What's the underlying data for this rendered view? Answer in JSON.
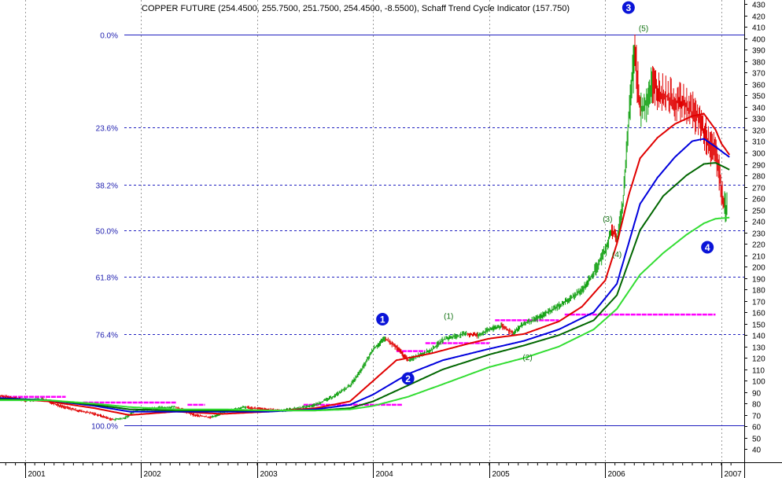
{
  "chart_data": {
    "type": "line",
    "title": "COPPER FUTURE (254.4500, 255.7500, 251.7500, 254.4500, -8.5500), Schaff Trend Cycle Indicator (157.750)",
    "ylim": [
      30,
      435
    ],
    "xlim": [
      2000.75,
      2007.15
    ],
    "y_ticks": [
      40,
      50,
      60,
      70,
      80,
      90,
      100,
      110,
      120,
      130,
      140,
      150,
      160,
      170,
      180,
      190,
      200,
      210,
      220,
      230,
      240,
      250,
      260,
      270,
      280,
      290,
      300,
      310,
      320,
      330,
      340,
      350,
      360,
      370,
      380,
      390,
      400,
      410,
      420,
      430
    ],
    "x_ticks": [
      {
        "label": "2001",
        "value": 2001
      },
      {
        "label": "2002",
        "value": 2002
      },
      {
        "label": "2003",
        "value": 2003
      },
      {
        "label": "2004",
        "value": 2004
      },
      {
        "label": "2005",
        "value": 2005
      },
      {
        "label": "2006",
        "value": 2006
      },
      {
        "label": "2007",
        "value": 2007
      }
    ],
    "fib_levels": [
      {
        "label": "0.0%",
        "value": 403
      },
      {
        "label": "23.6%",
        "value": 322
      },
      {
        "label": "38.2%",
        "value": 272
      },
      {
        "label": "50.0%",
        "value": 232
      },
      {
        "label": "61.8%",
        "value": 191
      },
      {
        "label": "76.4%",
        "value": 141
      },
      {
        "label": "100.0%",
        "value": 61
      }
    ],
    "price": {
      "name": "COPPER FUTURE",
      "x": [
        2000.75,
        2000.9,
        2001.0,
        2001.15,
        2001.3,
        2001.45,
        2001.6,
        2001.75,
        2001.85,
        2001.95,
        2002.1,
        2002.3,
        2002.45,
        2002.6,
        2002.75,
        2002.9,
        2003.05,
        2003.2,
        2003.35,
        2003.5,
        2003.65,
        2003.8,
        2003.9,
        2004.0,
        2004.1,
        2004.2,
        2004.3,
        2004.4,
        2004.5,
        2004.6,
        2004.7,
        2004.8,
        2004.9,
        2005.0,
        2005.1,
        2005.2,
        2005.3,
        2005.4,
        2005.5,
        2005.6,
        2005.7,
        2005.8,
        2005.9,
        2006.0,
        2006.05,
        2006.1,
        2006.15,
        2006.2,
        2006.25,
        2006.3,
        2006.35,
        2006.4,
        2006.5,
        2006.6,
        2006.7,
        2006.8,
        2006.85,
        2006.9,
        2006.95,
        2006.98,
        2007.02,
        2007.05
      ],
      "values": [
        87,
        85,
        83,
        84,
        78,
        74,
        71,
        66,
        67,
        74,
        76,
        77,
        70,
        68,
        74,
        77,
        75,
        74,
        76,
        79,
        86,
        96,
        110,
        128,
        137,
        129,
        118,
        123,
        127,
        136,
        139,
        141,
        140,
        145,
        148,
        142,
        150,
        154,
        160,
        166,
        172,
        180,
        195,
        215,
        232,
        225,
        255,
        330,
        390,
        335,
        345,
        360,
        350,
        345,
        340,
        330,
        318,
        305,
        300,
        280,
        252,
        254
      ]
    },
    "series": [
      {
        "name": "",
        "color": "#e00000",
        "x": [
          2000.75,
          2001.2,
          2001.6,
          2001.9,
          2002.3,
          2002.7,
          2003.1,
          2003.5,
          2003.8,
          2004.0,
          2004.2,
          2004.5,
          2004.8,
          2005.0,
          2005.3,
          2005.6,
          2005.8,
          2006.0,
          2006.1,
          2006.2,
          2006.3,
          2006.45,
          2006.6,
          2006.75,
          2006.85,
          2006.95,
          2007.0,
          2007.07
        ],
        "values": [
          85,
          82,
          76,
          70,
          73,
          71,
          73,
          76,
          82,
          100,
          118,
          124,
          132,
          137,
          141,
          152,
          165,
          188,
          220,
          262,
          295,
          313,
          325,
          332,
          334,
          320,
          308,
          298
        ]
      },
      {
        "name": "",
        "color": "#0000dd",
        "x": [
          2000.75,
          2001.2,
          2001.6,
          2001.9,
          2002.3,
          2002.7,
          2003.1,
          2003.5,
          2003.8,
          2004.0,
          2004.3,
          2004.6,
          2005.0,
          2005.3,
          2005.6,
          2005.9,
          2006.1,
          2006.2,
          2006.3,
          2006.45,
          2006.6,
          2006.75,
          2006.85,
          2006.95,
          2007.07
        ],
        "values": [
          85,
          83,
          78,
          73,
          73,
          73,
          73,
          75,
          79,
          88,
          106,
          118,
          128,
          135,
          145,
          160,
          185,
          220,
          255,
          278,
          296,
          310,
          312,
          305,
          296
        ]
      },
      {
        "name": "",
        "color": "#006600",
        "x": [
          2000.75,
          2001.2,
          2001.6,
          2001.9,
          2002.3,
          2002.7,
          2003.1,
          2003.5,
          2003.8,
          2004.0,
          2004.3,
          2004.6,
          2005.0,
          2005.3,
          2005.6,
          2005.9,
          2006.1,
          2006.3,
          2006.5,
          2006.7,
          2006.85,
          2006.95,
          2007.07
        ],
        "values": [
          84,
          83,
          79,
          75,
          74,
          74,
          74,
          74,
          76,
          82,
          96,
          110,
          123,
          131,
          140,
          153,
          175,
          232,
          262,
          280,
          290,
          291,
          285
        ]
      },
      {
        "name": "",
        "color": "#33dd33",
        "x": [
          2000.75,
          2001.2,
          2001.6,
          2001.9,
          2002.3,
          2002.7,
          2003.1,
          2003.5,
          2003.8,
          2004.0,
          2004.3,
          2004.6,
          2005.0,
          2005.3,
          2005.6,
          2005.9,
          2006.1,
          2006.3,
          2006.5,
          2006.7,
          2006.85,
          2006.95,
          2007.07
        ],
        "values": [
          83,
          83,
          80,
          77,
          75,
          75,
          74,
          74,
          75,
          78,
          86,
          97,
          112,
          120,
          130,
          145,
          163,
          193,
          212,
          228,
          238,
          242,
          243
        ]
      }
    ],
    "support_lines": [
      {
        "x1": 2000.75,
        "x2": 2001.35,
        "value": 86
      },
      {
        "x1": 2001.5,
        "x2": 2002.3,
        "value": 81
      },
      {
        "x1": 2002.4,
        "x2": 2002.55,
        "value": 79
      },
      {
        "x1": 2003.4,
        "x2": 2004.25,
        "value": 79
      },
      {
        "x1": 2004.2,
        "x2": 2004.45,
        "value": 126
      },
      {
        "x1": 2004.45,
        "x2": 2005.0,
        "value": 133
      },
      {
        "x1": 2005.05,
        "x2": 2005.6,
        "value": 153
      },
      {
        "x1": 2005.65,
        "x2": 2006.95,
        "value": 158
      }
    ],
    "wave_labels": [
      {
        "label": "(1)",
        "x": 2004.65,
        "value": 157
      },
      {
        "label": "(2)",
        "x": 2005.33,
        "value": 121
      },
      {
        "label": "(3)",
        "x": 2006.02,
        "value": 242
      },
      {
        "label": "(4)",
        "x": 2006.1,
        "value": 211
      },
      {
        "label": "(5)",
        "x": 2006.33,
        "value": 409
      }
    ],
    "markers": [
      {
        "label": "1",
        "x": 2004.08,
        "value": 154
      },
      {
        "label": "2",
        "x": 2004.3,
        "value": 102
      },
      {
        "label": "3",
        "x": 2006.2,
        "value": 427
      },
      {
        "label": "4",
        "x": 2006.88,
        "value": 217
      }
    ]
  }
}
